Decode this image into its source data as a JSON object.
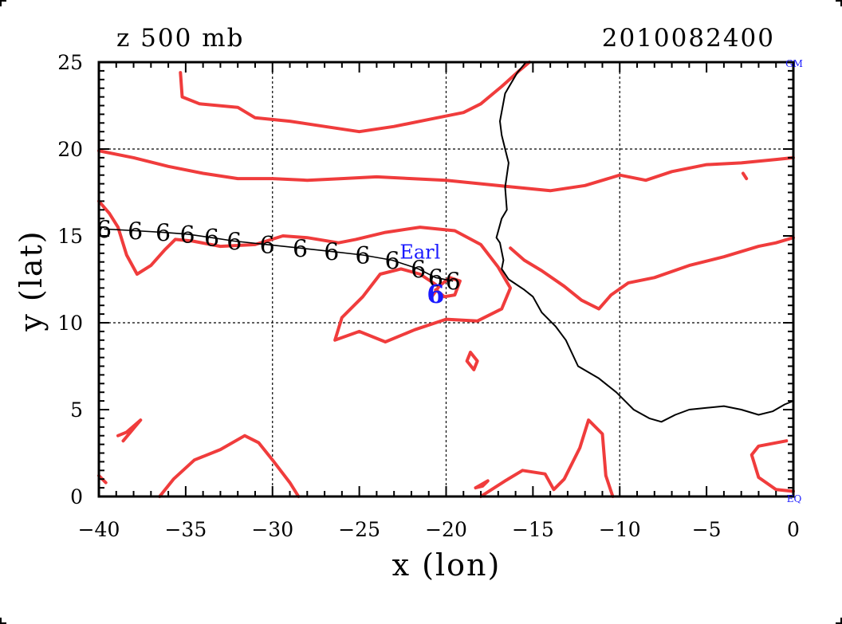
{
  "chart_data": {
    "type": "line",
    "title_left": "z 500 mb",
    "title_right": "2010082400",
    "xlabel": "x (lon)",
    "ylabel": "y (lat)",
    "xlim": [
      -40,
      0
    ],
    "ylim": [
      0,
      25
    ],
    "x_ticks": [
      -40,
      -35,
      -30,
      -25,
      -20,
      -15,
      -10,
      -5,
      0
    ],
    "y_ticks": [
      0,
      5,
      10,
      15,
      20,
      25
    ],
    "x_tick_labels": [
      "−40",
      "−35",
      "−30",
      "−25",
      "−20",
      "−15",
      "−10",
      "−5",
      "0"
    ],
    "y_tick_labels": [
      "0",
      "5",
      "10",
      "15",
      "20",
      "25"
    ],
    "grid_x": [
      -30,
      -20,
      -10
    ],
    "grid_y": [
      10,
      20
    ],
    "corner_labels": {
      "top_right": "GM",
      "bottom_right": "EQ"
    },
    "storm": {
      "name": "Earl",
      "lon": -20.6,
      "lat": 11.7,
      "label_lon": -21.5,
      "label_lat": 13.7,
      "symbol": "6"
    },
    "track": [
      {
        "lon": -39.7,
        "lat": 15.4
      },
      {
        "lon": -37.9,
        "lat": 15.3
      },
      {
        "lon": -36.3,
        "lat": 15.2
      },
      {
        "lon": -34.9,
        "lat": 15.1
      },
      {
        "lon": -33.5,
        "lat": 14.9
      },
      {
        "lon": -32.2,
        "lat": 14.7
      },
      {
        "lon": -30.3,
        "lat": 14.5
      },
      {
        "lon": -28.4,
        "lat": 14.3
      },
      {
        "lon": -26.6,
        "lat": 14.1
      },
      {
        "lon": -24.8,
        "lat": 13.9
      },
      {
        "lon": -23.1,
        "lat": 13.6
      },
      {
        "lon": -21.6,
        "lat": 13.1
      },
      {
        "lon": -20.6,
        "lat": 12.6
      },
      {
        "lon": -19.6,
        "lat": 12.4
      }
    ],
    "coastline": [
      [
        -15.4,
        25
      ],
      [
        -15.9,
        24.4
      ],
      [
        -16.6,
        23.2
      ],
      [
        -16.9,
        21.6
      ],
      [
        -16.8,
        20.8
      ],
      [
        -16.6,
        20.0
      ],
      [
        -16.4,
        19.2
      ],
      [
        -16.6,
        17.8
      ],
      [
        -16.5,
        16.5
      ],
      [
        -16.8,
        16.0
      ],
      [
        -17.1,
        14.9
      ],
      [
        -16.9,
        14.6
      ],
      [
        -16.7,
        13.6
      ],
      [
        -16.8,
        13.1
      ],
      [
        -16.4,
        12.5
      ],
      [
        -15.5,
        11.9
      ],
      [
        -15.0,
        11.5
      ],
      [
        -14.5,
        10.6
      ],
      [
        -13.7,
        9.8
      ],
      [
        -13.1,
        9.0
      ],
      [
        -12.4,
        7.5
      ],
      [
        -11.2,
        6.8
      ],
      [
        -10.2,
        6.0
      ],
      [
        -9.2,
        5.0
      ],
      [
        -8.3,
        4.5
      ],
      [
        -7.6,
        4.3
      ],
      [
        -6.8,
        4.7
      ],
      [
        -6.0,
        5.0
      ],
      [
        -5.0,
        5.1
      ],
      [
        -4.0,
        5.2
      ],
      [
        -3.0,
        5.0
      ],
      [
        -2.0,
        4.7
      ],
      [
        -1.2,
        4.9
      ],
      [
        -0.5,
        5.3
      ],
      [
        0,
        5.5
      ]
    ],
    "contours": [
      [
        [
          -35.3,
          24.4
        ],
        [
          -35.2,
          23.0
        ],
        [
          -34.2,
          22.6
        ],
        [
          -32.0,
          22.4
        ],
        [
          -31.0,
          21.8
        ],
        [
          -29.0,
          21.6
        ],
        [
          -27.0,
          21.3
        ],
        [
          -25.0,
          21.0
        ],
        [
          -23.0,
          21.3
        ],
        [
          -21.0,
          21.7
        ],
        [
          -19.0,
          22.1
        ],
        [
          -18.0,
          22.6
        ],
        [
          -16.8,
          23.6
        ],
        [
          -15.8,
          24.5
        ],
        [
          -15.2,
          25
        ]
      ],
      [
        [
          -40,
          19.9
        ],
        [
          -38.0,
          19.5
        ],
        [
          -36.0,
          19.0
        ],
        [
          -34.0,
          18.6
        ],
        [
          -32.0,
          18.3
        ],
        [
          -30.0,
          18.3
        ],
        [
          -28.0,
          18.2
        ],
        [
          -26.0,
          18.3
        ],
        [
          -24.0,
          18.4
        ],
        [
          -22.0,
          18.3
        ],
        [
          -20.0,
          18.2
        ],
        [
          -18.0,
          18.0
        ],
        [
          -16.0,
          17.8
        ],
        [
          -14.0,
          17.6
        ],
        [
          -12.0,
          17.9
        ],
        [
          -10.0,
          18.5
        ],
        [
          -8.5,
          18.2
        ],
        [
          -7.0,
          18.7
        ],
        [
          -5.0,
          19.1
        ],
        [
          -3.0,
          19.2
        ],
        [
          -1.0,
          19.4
        ],
        [
          0,
          19.5
        ]
      ],
      [
        [
          -40,
          17.0
        ],
        [
          -39.4,
          16.3
        ],
        [
          -38.9,
          15.5
        ],
        [
          -38.4,
          13.9
        ],
        [
          -37.8,
          12.8
        ],
        [
          -37.0,
          13.3
        ],
        [
          -36.2,
          14.2
        ],
        [
          -35.6,
          14.8
        ],
        [
          -34.6,
          14.7
        ],
        [
          -33.0,
          14.4
        ],
        [
          -31.0,
          14.5
        ],
        [
          -29.4,
          15.0
        ],
        [
          -28.0,
          14.9
        ],
        [
          -26.2,
          14.6
        ],
        [
          -25.2,
          14.8
        ],
        [
          -23.5,
          15.2
        ],
        [
          -21.5,
          15.5
        ],
        [
          -19.5,
          15.3
        ],
        [
          -18.0,
          14.5
        ],
        [
          -17.0,
          13.2
        ],
        [
          -16.3,
          12.0
        ],
        [
          -16.8,
          10.8
        ],
        [
          -18.2,
          10.1
        ],
        [
          -20.0,
          10.2
        ],
        [
          -21.8,
          9.6
        ],
        [
          -23.5,
          8.9
        ],
        [
          -25.0,
          9.5
        ],
        [
          -26.4,
          9.0
        ],
        [
          -26.0,
          10.3
        ],
        [
          -24.8,
          11.5
        ],
        [
          -23.8,
          12.8
        ],
        [
          -22.6,
          13.1
        ],
        [
          -21.5,
          12.8
        ],
        [
          -20.6,
          12.2
        ]
      ],
      [
        [
          -20.9,
          11.4
        ],
        [
          -20.4,
          12.1
        ],
        [
          -19.8,
          12.6
        ],
        [
          -19.2,
          12.4
        ],
        [
          -19.5,
          11.6
        ],
        [
          -20.1,
          11.5
        ],
        [
          -20.6,
          11.9
        ]
      ],
      [
        [
          -16.3,
          14.3
        ],
        [
          -15.5,
          13.6
        ],
        [
          -14.5,
          13.0
        ],
        [
          -13.2,
          12.1
        ],
        [
          -12.2,
          11.3
        ],
        [
          -11.2,
          10.8
        ],
        [
          -10.5,
          11.6
        ],
        [
          -9.5,
          12.3
        ],
        [
          -8.0,
          12.6
        ],
        [
          -6.0,
          13.3
        ],
        [
          -4.0,
          13.8
        ],
        [
          -2.0,
          14.4
        ],
        [
          -1.0,
          14.6
        ],
        [
          0,
          14.9
        ]
      ],
      [
        [
          -38.6,
          3.2
        ],
        [
          -37.6,
          4.4
        ],
        [
          -38.4,
          3.7
        ],
        [
          -38.9,
          3.5
        ]
      ],
      [
        [
          -18.6,
          8.3
        ],
        [
          -18.2,
          7.8
        ],
        [
          -18.4,
          7.3
        ],
        [
          -18.8,
          7.8
        ],
        [
          -18.6,
          8.3
        ]
      ],
      [
        [
          -36.5,
          0
        ],
        [
          -35.7,
          1.0
        ],
        [
          -34.5,
          2.1
        ],
        [
          -33.0,
          2.7
        ],
        [
          -31.6,
          3.5
        ],
        [
          -30.8,
          3.1
        ],
        [
          -30.0,
          2.1
        ],
        [
          -29.0,
          0.8
        ],
        [
          -28.5,
          0
        ]
      ],
      [
        [
          -18.0,
          0
        ],
        [
          -16.6,
          0.9
        ],
        [
          -15.6,
          1.5
        ],
        [
          -14.3,
          1.3
        ],
        [
          -13.8,
          0.4
        ],
        [
          -13.2,
          1.0
        ],
        [
          -12.3,
          2.8
        ],
        [
          -11.8,
          4.4
        ],
        [
          -11.0,
          3.6
        ],
        [
          -10.8,
          1.2
        ],
        [
          -10.4,
          0
        ]
      ],
      [
        [
          -18.3,
          0.5
        ],
        [
          -17.6,
          0.9
        ],
        [
          -17.9,
          0.6
        ],
        [
          -18.3,
          0.5
        ]
      ],
      [
        [
          -0.4,
          3.2
        ],
        [
          -2.0,
          2.9
        ],
        [
          -2.4,
          2.4
        ],
        [
          -2.0,
          1.1
        ],
        [
          -1.0,
          0.4
        ],
        [
          0,
          0.3
        ]
      ],
      [
        [
          -2.9,
          18.6
        ],
        [
          -2.7,
          18.3
        ]
      ],
      [
        [
          -40,
          1.2
        ],
        [
          -39.6,
          0.8
        ]
      ]
    ]
  }
}
